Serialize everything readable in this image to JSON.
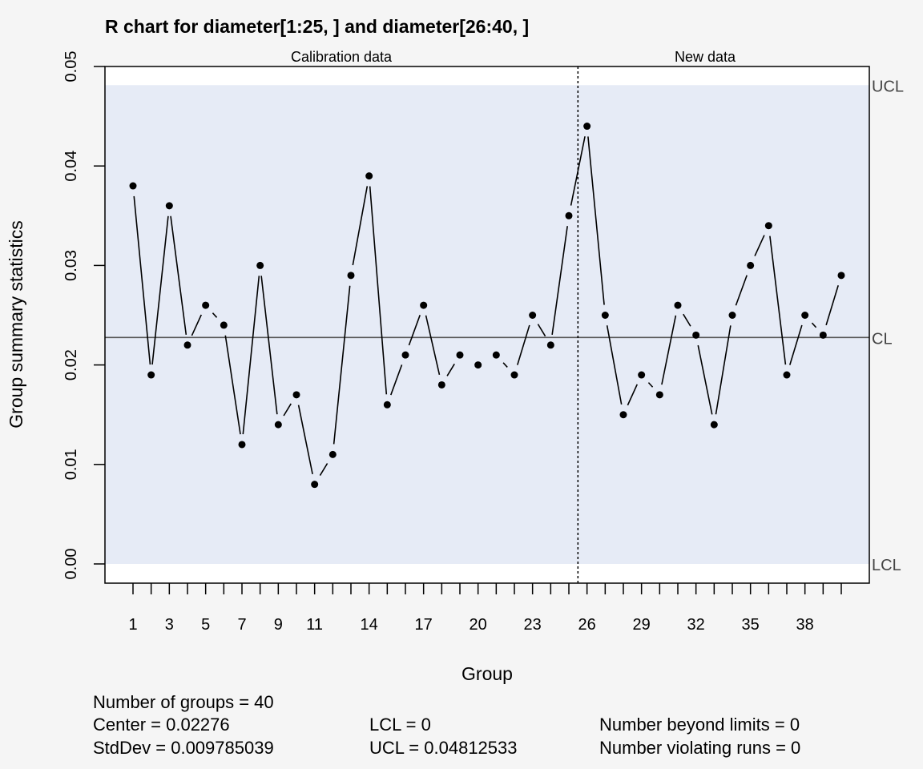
{
  "chart_data": {
    "type": "line",
    "title": "R chart for diameter[1:25, ] and diameter[26:40, ]",
    "xlabel": "Group",
    "ylabel": "Group summary statistics",
    "xlim": [
      1,
      40
    ],
    "ylim": [
      0,
      0.05
    ],
    "yticks": [
      "0.00",
      "0.01",
      "0.02",
      "0.03",
      "0.04",
      "0.05"
    ],
    "xtick_labels": [
      "1",
      "3",
      "5",
      "7",
      "9",
      "11",
      "14",
      "17",
      "20",
      "23",
      "26",
      "29",
      "32",
      "35",
      "38"
    ],
    "sections": [
      "Calibration data",
      "New data"
    ],
    "x": [
      1,
      2,
      3,
      4,
      5,
      6,
      7,
      8,
      9,
      10,
      11,
      12,
      13,
      14,
      15,
      16,
      17,
      18,
      19,
      20,
      21,
      22,
      23,
      24,
      25,
      26,
      27,
      28,
      29,
      30,
      31,
      32,
      33,
      34,
      35,
      36,
      37,
      38,
      39,
      40
    ],
    "values": [
      0.038,
      0.019,
      0.036,
      0.022,
      0.026,
      0.024,
      0.012,
      0.03,
      0.014,
      0.017,
      0.008,
      0.011,
      0.029,
      0.039,
      0.016,
      0.021,
      0.026,
      0.018,
      0.021,
      0.02,
      0.021,
      0.019,
      0.025,
      0.022,
      0.035,
      0.044,
      0.025,
      0.015,
      0.019,
      0.017,
      0.026,
      0.023,
      0.014,
      0.025,
      0.03,
      0.034,
      0.019,
      0.025,
      0.023,
      0.029
    ],
    "calibration_groups": 25,
    "center": 0.02276,
    "lcl": 0,
    "ucl": 0.04812533,
    "limit_labels": {
      "ucl": "UCL",
      "cl": "CL",
      "lcl": "LCL"
    },
    "colors": {
      "band": "#e6ebf6",
      "background": "#f5f5f5",
      "plot_bg": "#ffffff",
      "line": "#000000"
    }
  },
  "stats": {
    "groups": "Number of groups = 40",
    "center": "Center = 0.02276",
    "stddev": "StdDev = 0.009785039",
    "lcl": "LCL = 0",
    "ucl": "UCL = 0.04812533",
    "beyond": "Number beyond limits = 0",
    "violating": "Number violating runs = 0"
  }
}
